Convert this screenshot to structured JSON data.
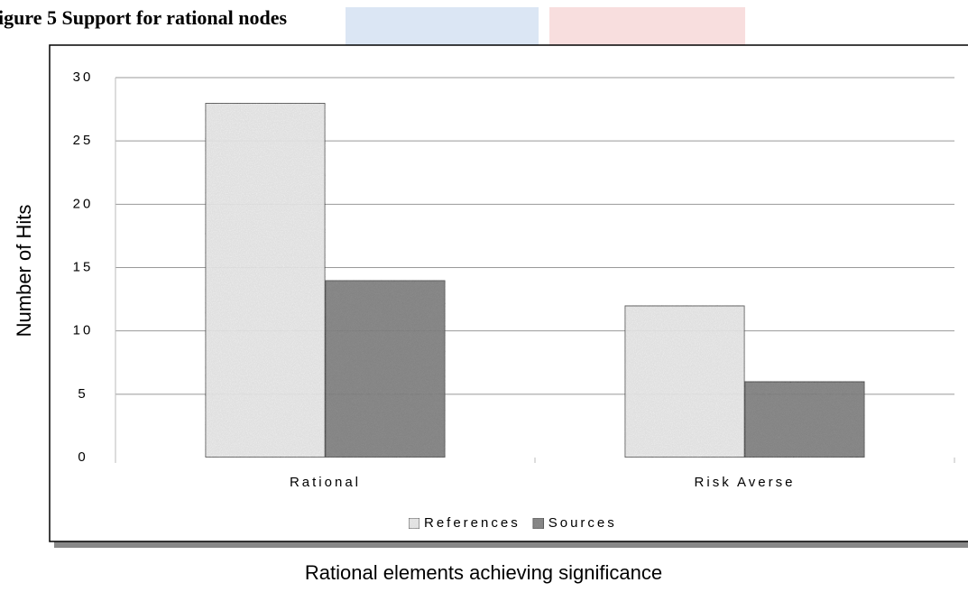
{
  "chart_data": {
    "type": "bar",
    "title": "igure 5  Support for rational nodes",
    "categories": [
      "Rational",
      "Risk Averse"
    ],
    "series": [
      {
        "name": "References",
        "color": "#e6e6e6",
        "values": [
          28,
          12
        ]
      },
      {
        "name": "Sources",
        "color": "#6e6e6e",
        "values": [
          14,
          6
        ]
      }
    ],
    "y_label": "Number of Hits",
    "x_label": "Rational elements achieving significance",
    "ylim": [
      0,
      30
    ],
    "yticks": [
      0,
      5,
      10,
      15,
      20,
      25,
      30
    ],
    "grid": true,
    "legend": "bottom"
  }
}
